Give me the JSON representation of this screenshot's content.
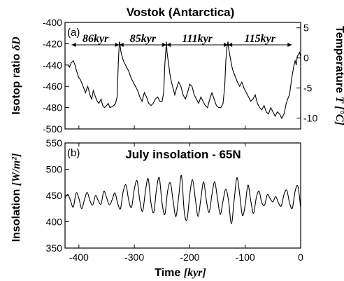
{
  "chart_data": [
    {
      "type": "line",
      "title": "Vostok (Antarctica)",
      "panel_label": "(a)",
      "xlim": [
        -425,
        0
      ],
      "ylim": [
        -500,
        -400
      ],
      "ylabel": {
        "text": "Isotop ratio ",
        "symbol": "δD"
      },
      "y2label": {
        "text": "Temperature ",
        "symbol": "T [°C]"
      },
      "y2lim": [
        -11.8,
        5.9
      ],
      "yticks": [
        "-500",
        "-480",
        "-460",
        "-440",
        "-420",
        "-400"
      ],
      "y2ticks": [
        "-10",
        "-5",
        "0",
        "5"
      ],
      "cycles": [
        {
          "label": "86kyr",
          "from": -413,
          "to": -327
        },
        {
          "label": "85kyr",
          "from": -327,
          "to": -242
        },
        {
          "label": "111kyr",
          "from": -242,
          "to": -131
        },
        {
          "label": "115kyr",
          "from": -131,
          "to": -16
        }
      ],
      "series": [
        {
          "x": [
            -420,
            -417,
            -414,
            -410,
            -407,
            -404,
            -400,
            -397,
            -394,
            -391,
            -388,
            -384,
            -380,
            -377,
            -374,
            -370,
            -367,
            -364,
            -360,
            -357,
            -354,
            -350,
            -347,
            -344,
            -340,
            -337,
            -334,
            -331,
            -329,
            -327,
            -326,
            -324,
            -321,
            -318,
            -314,
            -310,
            -306,
            -302,
            -298,
            -294,
            -290,
            -286,
            -282,
            -278,
            -274,
            -270,
            -266,
            -262,
            -258,
            -254,
            -250,
            -247,
            -245,
            -243,
            -242,
            -241,
            -239,
            -236,
            -233,
            -230,
            -227,
            -224,
            -220,
            -216,
            -212,
            -208,
            -204,
            -200,
            -196,
            -192,
            -188,
            -184,
            -180,
            -176,
            -172,
            -168,
            -164,
            -160,
            -156,
            -152,
            -148,
            -144,
            -140,
            -137,
            -135,
            -133,
            -131,
            -130,
            -128,
            -126,
            -123,
            -120,
            -117,
            -114,
            -110,
            -106,
            -102,
            -98,
            -94,
            -90,
            -86,
            -82,
            -78,
            -74,
            -70,
            -66,
            -62,
            -58,
            -54,
            -50,
            -46,
            -42,
            -38,
            -34,
            -30,
            -26,
            -22,
            -20,
            -18,
            -16,
            -14,
            -12,
            -10,
            -8,
            -6,
            -4,
            -2,
            0
          ],
          "y": [
            -440,
            -442,
            -438,
            -436,
            -440,
            -446,
            -452,
            -454,
            -458,
            -462,
            -466,
            -460,
            -468,
            -472,
            -464,
            -470,
            -474,
            -476,
            -472,
            -478,
            -480,
            -478,
            -476,
            -480,
            -479,
            -478,
            -476,
            -470,
            -440,
            -418,
            -420,
            -428,
            -434,
            -438,
            -442,
            -446,
            -452,
            -456,
            -460,
            -464,
            -470,
            -474,
            -466,
            -470,
            -476,
            -478,
            -476,
            -472,
            -470,
            -474,
            -474,
            -466,
            -440,
            -425,
            -418,
            -428,
            -436,
            -448,
            -456,
            -462,
            -468,
            -462,
            -456,
            -460,
            -468,
            -472,
            -466,
            -458,
            -460,
            -468,
            -472,
            -476,
            -470,
            -474,
            -478,
            -480,
            -472,
            -466,
            -472,
            -478,
            -480,
            -480,
            -476,
            -460,
            -436,
            -424,
            -418,
            -424,
            -430,
            -436,
            -444,
            -448,
            -452,
            -456,
            -460,
            -456,
            -462,
            -466,
            -470,
            -474,
            -472,
            -468,
            -476,
            -480,
            -482,
            -478,
            -484,
            -486,
            -480,
            -484,
            -488,
            -484,
            -486,
            -490,
            -486,
            -476,
            -470,
            -468,
            -460,
            -452,
            -446,
            -440,
            -436,
            -440,
            -432,
            -430,
            -428,
            -432
          ]
        }
      ]
    },
    {
      "type": "line",
      "title": "July insolation - 65N",
      "panel_label": "(b)",
      "xlim": [
        -425,
        0
      ],
      "ylim": [
        350,
        550
      ],
      "xlabel": {
        "text": "Time ",
        "unit": "[kyr]"
      },
      "ylabel": {
        "text": "Insolation ",
        "unit": "[W/m²]"
      },
      "yticks": [
        "350",
        "400",
        "450",
        "500",
        "550"
      ],
      "xticks": [
        "-400",
        "-300",
        "-200",
        "-100",
        "0"
      ],
      "series": [
        {
          "x": [
            -425,
            -420,
            -415,
            -410,
            -405,
            -400,
            -395,
            -390,
            -385,
            -380,
            -375,
            -370,
            -365,
            -360,
            -355,
            -350,
            -345,
            -340,
            -335,
            -330,
            -325,
            -320,
            -315,
            -310,
            -305,
            -300,
            -295,
            -290,
            -285,
            -280,
            -275,
            -270,
            -265,
            -260,
            -255,
            -250,
            -245,
            -240,
            -235,
            -230,
            -225,
            -220,
            -215,
            -210,
            -205,
            -200,
            -195,
            -190,
            -185,
            -180,
            -175,
            -170,
            -165,
            -160,
            -155,
            -150,
            -145,
            -140,
            -135,
            -130,
            -125,
            -120,
            -115,
            -110,
            -105,
            -100,
            -95,
            -90,
            -85,
            -80,
            -75,
            -70,
            -65,
            -60,
            -55,
            -50,
            -45,
            -40,
            -35,
            -30,
            -25,
            -20,
            -15,
            -10,
            -5,
            0
          ],
          "y": [
            445,
            452,
            440,
            428,
            455,
            445,
            425,
            442,
            456,
            440,
            432,
            450,
            440,
            434,
            458,
            446,
            432,
            442,
            455,
            435,
            425,
            458,
            470,
            440,
            428,
            462,
            478,
            440,
            420,
            458,
            482,
            436,
            418,
            462,
            484,
            436,
            414,
            458,
            474,
            440,
            410,
            448,
            488,
            420,
            404,
            452,
            480,
            444,
            410,
            444,
            476,
            440,
            418,
            452,
            476,
            444,
            414,
            440,
            462,
            440,
            396,
            440,
            484,
            452,
            412,
            432,
            470,
            440,
            416,
            446,
            458,
            436,
            432,
            452,
            444,
            438,
            448,
            436,
            430,
            452,
            460,
            436,
            426,
            458,
            468,
            428
          ]
        }
      ]
    }
  ]
}
